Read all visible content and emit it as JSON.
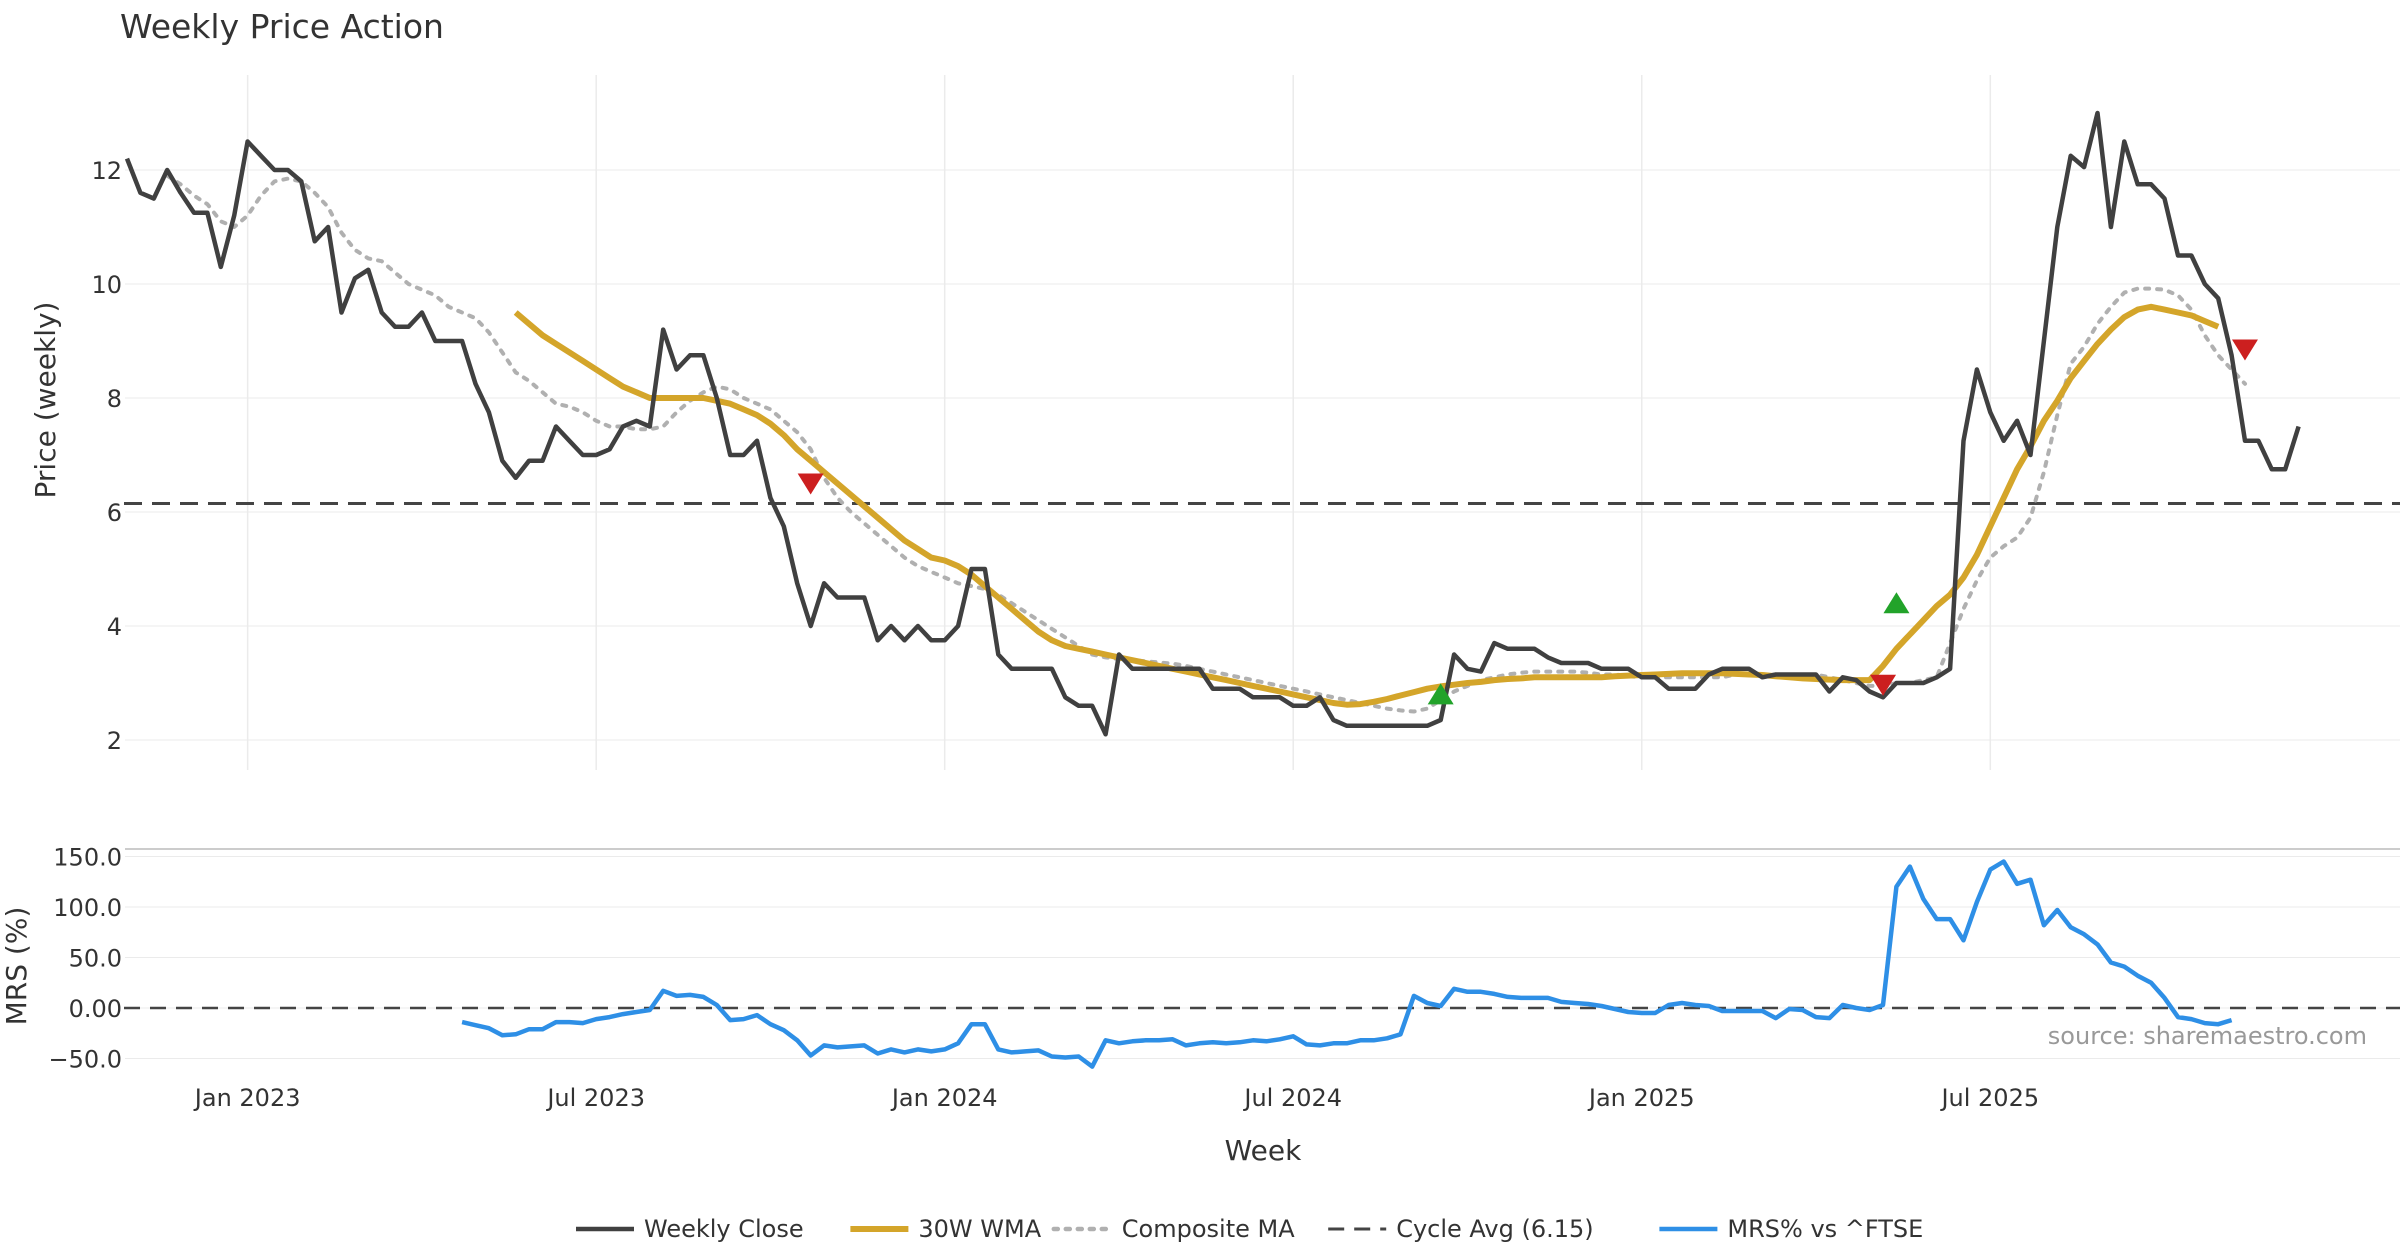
{
  "title": "Weekly Price Action",
  "source_label": "source: sharemaestro.com",
  "colors": {
    "close": "#404040",
    "wma": "#d4a52a",
    "composite": "#b0b0b0",
    "cycle": "#444444",
    "mrs": "#2e8fe6",
    "up_marker": "#22a32a",
    "down_marker": "#cc1f1f",
    "grid": "#ebebeb"
  },
  "chart_data": [
    {
      "type": "line",
      "panel": "price",
      "ylabel": "Price (weekly)",
      "ylim": [
        1.5,
        13.3
      ],
      "yticks": [
        2,
        4,
        6,
        8,
        10,
        12
      ],
      "x_range": [
        0,
        163
      ],
      "x_gridlines": [
        9,
        35,
        61,
        87,
        113,
        139
      ],
      "series": [
        {
          "name": "Weekly Close",
          "x_start": 0,
          "values": [
            12.2,
            11.6,
            11.5,
            12.0,
            11.6,
            11.25,
            11.25,
            10.3,
            11.2,
            12.5,
            12.25,
            12.0,
            12.0,
            11.8,
            10.75,
            11.0,
            9.5,
            10.1,
            10.25,
            9.5,
            9.25,
            9.25,
            9.5,
            9.0,
            9.0,
            9.0,
            8.25,
            7.75,
            6.9,
            6.6,
            6.9,
            6.9,
            7.5,
            7.25,
            7.0,
            7.0,
            7.1,
            7.5,
            7.6,
            7.5,
            9.2,
            8.5,
            8.75,
            8.75,
            8.0,
            7.0,
            7.0,
            7.25,
            6.25,
            5.75,
            4.75,
            4.0,
            4.75,
            4.5,
            4.5,
            4.5,
            3.75,
            4.0,
            3.75,
            4.0,
            3.75,
            3.75,
            4.0,
            5.0,
            5.0,
            3.5,
            3.25,
            3.25,
            3.25,
            3.25,
            2.75,
            2.6,
            2.6,
            2.1,
            3.5,
            3.25,
            3.25,
            3.25,
            3.25,
            3.25,
            3.25,
            2.9,
            2.9,
            2.9,
            2.75,
            2.75,
            2.75,
            2.6,
            2.6,
            2.75,
            2.35,
            2.25,
            2.25,
            2.25,
            2.25,
            2.25,
            2.25,
            2.25,
            2.35,
            3.5,
            3.25,
            3.2,
            3.7,
            3.6,
            3.6,
            3.6,
            3.45,
            3.35,
            3.35,
            3.35,
            3.25,
            3.25,
            3.25,
            3.1,
            3.1,
            2.9,
            2.9,
            2.9,
            3.15,
            3.25,
            3.25,
            3.25,
            3.1,
            3.15,
            3.15,
            3.15,
            3.15,
            2.85,
            3.1,
            3.05,
            2.85,
            2.75,
            3.0,
            3.0,
            3.0,
            3.1,
            3.25,
            7.25,
            8.5,
            7.75,
            7.25,
            7.6,
            7.0,
            9.0,
            11.0,
            12.25,
            12.05,
            13.0,
            11.0,
            12.5,
            11.75,
            11.75,
            11.5,
            10.5,
            10.5,
            10.0,
            9.75,
            8.75,
            7.25,
            7.25,
            6.75,
            6.75,
            7.5
          ]
        },
        {
          "name": "30W WMA",
          "x_start": 29,
          "values": [
            9.5,
            9.3,
            9.1,
            8.95,
            8.8,
            8.65,
            8.5,
            8.35,
            8.2,
            8.1,
            8.0,
            8.0,
            8.0,
            8.0,
            8.0,
            7.95,
            7.9,
            7.8,
            7.7,
            7.55,
            7.35,
            7.1,
            6.9,
            6.7,
            6.5,
            6.3,
            6.1,
            5.9,
            5.7,
            5.5,
            5.35,
            5.2,
            5.15,
            5.05,
            4.9,
            4.7,
            4.5,
            4.3,
            4.1,
            3.9,
            3.75,
            3.65,
            3.6,
            3.55,
            3.5,
            3.45,
            3.4,
            3.35,
            3.3,
            3.25,
            3.2,
            3.15,
            3.1,
            3.05,
            3.0,
            2.95,
            2.9,
            2.85,
            2.8,
            2.75,
            2.7,
            2.65,
            2.62,
            2.63,
            2.67,
            2.72,
            2.78,
            2.84,
            2.9,
            2.94,
            2.97,
            3.0,
            3.02,
            3.05,
            3.07,
            3.08,
            3.1,
            3.1,
            3.1,
            3.1,
            3.1,
            3.1,
            3.12,
            3.13,
            3.14,
            3.15,
            3.16,
            3.17,
            3.17,
            3.17,
            3.17,
            3.16,
            3.15,
            3.14,
            3.12,
            3.1,
            3.08,
            3.07,
            3.06,
            3.05,
            3.05,
            3.05,
            3.3,
            3.6,
            3.85,
            4.1,
            4.35,
            4.55,
            4.85,
            5.25,
            5.75,
            6.25,
            6.75,
            7.15,
            7.6,
            7.95,
            8.35,
            8.65,
            8.95,
            9.2,
            9.42,
            9.55,
            9.6,
            9.55,
            9.5,
            9.45,
            9.35,
            9.25
          ]
        },
        {
          "name": "Composite MA",
          "x_start": 3,
          "values": [
            11.9,
            11.75,
            11.55,
            11.4,
            11.1,
            11.0,
            11.2,
            11.55,
            11.8,
            11.85,
            11.8,
            11.6,
            11.35,
            10.9,
            10.6,
            10.45,
            10.4,
            10.2,
            10.0,
            9.9,
            9.8,
            9.6,
            9.5,
            9.4,
            9.15,
            8.8,
            8.45,
            8.3,
            8.1,
            7.9,
            7.85,
            7.75,
            7.6,
            7.5,
            7.5,
            7.45,
            7.45,
            7.5,
            7.75,
            7.95,
            8.1,
            8.2,
            8.15,
            8.0,
            7.9,
            7.8,
            7.6,
            7.4,
            7.1,
            6.6,
            6.25,
            6.0,
            5.8,
            5.6,
            5.4,
            5.2,
            5.05,
            4.95,
            4.85,
            4.75,
            4.7,
            4.65,
            4.55,
            4.4,
            4.25,
            4.1,
            3.95,
            3.8,
            3.65,
            3.5,
            3.45,
            3.42,
            3.4,
            3.38,
            3.36,
            3.34,
            3.3,
            3.25,
            3.2,
            3.15,
            3.1,
            3.05,
            3.0,
            2.95,
            2.9,
            2.85,
            2.8,
            2.75,
            2.7,
            2.65,
            2.6,
            2.55,
            2.52,
            2.5,
            2.55,
            2.7,
            2.85,
            2.95,
            3.05,
            3.1,
            3.15,
            3.18,
            3.2,
            3.2,
            3.2,
            3.2,
            3.18,
            3.15,
            3.15,
            3.12,
            3.1,
            3.1,
            3.1,
            3.1,
            3.1,
            3.1,
            3.1,
            3.15,
            3.15,
            3.15,
            3.15,
            3.15,
            3.15,
            3.15,
            3.1,
            3.05,
            3.0,
            2.95,
            2.95,
            3.0,
            3.0,
            3.05,
            3.1,
            3.7,
            4.3,
            4.8,
            5.2,
            5.4,
            5.55,
            5.9,
            6.7,
            7.7,
            8.6,
            8.9,
            9.3,
            9.6,
            9.85,
            9.92,
            9.92,
            9.9,
            9.8,
            9.55,
            9.1,
            8.75,
            8.5,
            8.25
          ]
        }
      ],
      "cycle_avg": {
        "name": "Cycle Avg (6.15)",
        "value": 6.15
      },
      "signals": [
        {
          "type": "down",
          "x": 51,
          "y": 6.5
        },
        {
          "type": "up",
          "x": 98,
          "y": 2.8
        },
        {
          "type": "down",
          "x": 131,
          "y": 2.97
        },
        {
          "type": "up",
          "x": 132,
          "y": 4.4
        },
        {
          "type": "down",
          "x": 158,
          "y": 8.85
        }
      ]
    },
    {
      "type": "line",
      "panel": "mrs",
      "ylabel": "MRS (%)",
      "ylim": [
        -58,
        160
      ],
      "yticks": [
        -50.0,
        0.0,
        50.0,
        100.0,
        150.0
      ],
      "ytick_labels": [
        "−50.0",
        "0.00",
        "50.0",
        "100.0",
        "150.0"
      ],
      "zero_line": 0,
      "series": [
        {
          "name": "MRS% vs ^FTSE",
          "x_start": 25,
          "values": [
            -14,
            -17,
            -20,
            -27,
            -26,
            -21,
            -21,
            -14,
            -14,
            -15,
            -11,
            -9,
            -6,
            -4,
            -2,
            17,
            12,
            13,
            11,
            3,
            -12,
            -11,
            -7,
            -16,
            -22,
            -32,
            -47,
            -37,
            -39,
            -38,
            -37,
            -45,
            -41,
            -44,
            -41,
            -43,
            -41,
            -35,
            -16,
            -16,
            -41,
            -44,
            -43,
            -42,
            -48,
            -49,
            -48,
            -58,
            -32,
            -35,
            -33,
            -32,
            -32,
            -31,
            -37,
            -35,
            -34,
            -35,
            -34,
            -32,
            -33,
            -31,
            -28,
            -36,
            -37,
            -35,
            -35,
            -32,
            -32,
            -30,
            -26,
            12,
            5,
            2,
            19,
            16,
            16,
            14,
            11,
            10,
            10,
            10,
            6,
            5,
            4,
            2,
            -1,
            -4,
            -5,
            -5,
            3,
            5,
            3,
            2,
            -3,
            -3,
            -3,
            -3,
            -10,
            -1,
            -2,
            -9,
            -10,
            3,
            0,
            -2,
            3,
            120,
            140,
            108,
            88,
            88,
            67,
            105,
            137,
            145,
            123,
            127,
            82,
            97,
            80,
            73,
            63,
            45,
            41,
            32,
            25,
            10,
            -9,
            -11,
            -15,
            -16,
            -12
          ]
        }
      ],
      "xticks": [
        {
          "x": 9,
          "label": "Jan 2023"
        },
        {
          "x": 35,
          "label": "Jul 2023"
        },
        {
          "x": 61,
          "label": "Jan 2024"
        },
        {
          "x": 87,
          "label": "Jul 2024"
        },
        {
          "x": 113,
          "label": "Jan 2025"
        },
        {
          "x": 139,
          "label": "Jul 2025"
        }
      ],
      "xlabel": "Week"
    }
  ],
  "legend": [
    {
      "key": "close",
      "label": "Weekly Close",
      "style": "solid"
    },
    {
      "key": "wma",
      "label": "30W WMA",
      "style": "solid"
    },
    {
      "key": "composite",
      "label": "Composite MA",
      "style": "dotted"
    },
    {
      "key": "cycle",
      "label": "Cycle Avg (6.15)",
      "style": "dashed"
    },
    {
      "key": "mrs",
      "label": "MRS% vs ^FTSE",
      "style": "solid"
    }
  ]
}
